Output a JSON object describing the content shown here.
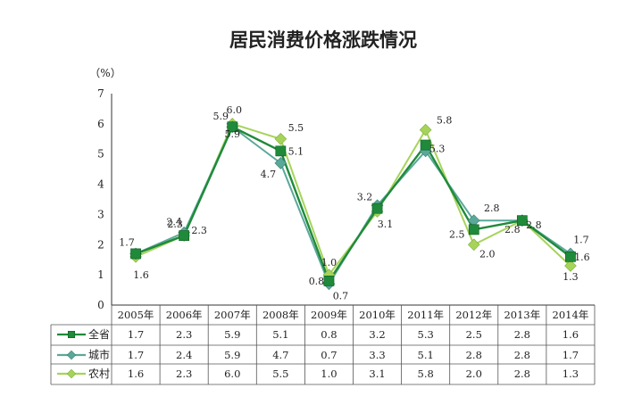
{
  "chart_data": {
    "type": "line",
    "title": "居民消费价格涨跌情况",
    "unit_label": "（%）",
    "categories": [
      "2005年",
      "2006年",
      "2007年",
      "2008年",
      "2009年",
      "2010年",
      "2011年",
      "2012年",
      "2013年",
      "2014年"
    ],
    "ylim": [
      0,
      7
    ],
    "yticks": [
      "0",
      "1",
      "2",
      "3",
      "4",
      "5",
      "6",
      "7"
    ],
    "grid": false,
    "legend": "table-left",
    "series": [
      {
        "name": "全省",
        "marker": "square",
        "color": "#1f8a3a",
        "values": [
          1.7,
          2.3,
          5.9,
          5.1,
          0.8,
          3.2,
          5.3,
          2.5,
          2.8,
          1.6
        ],
        "labels": [
          "1.7",
          "2.3",
          "5.9",
          "5.1",
          "0.8",
          "3.2",
          "5.3",
          "2.5",
          "2.8",
          "1.6"
        ]
      },
      {
        "name": "城市",
        "marker": "diamond",
        "color": "#5aa89a",
        "values": [
          1.7,
          2.4,
          5.9,
          4.7,
          0.7,
          3.3,
          5.1,
          2.8,
          2.8,
          1.7
        ],
        "labels": [
          "1.7",
          "2.4",
          "5.9",
          "4.7",
          "0.7",
          "3.3",
          "5.1",
          "2.8",
          "2.8",
          "1.7"
        ]
      },
      {
        "name": "农村",
        "marker": "diamond",
        "color": "#a6d35a",
        "values": [
          1.6,
          2.3,
          6.0,
          5.5,
          1.0,
          3.1,
          5.8,
          2.0,
          2.8,
          1.3
        ],
        "labels": [
          "1.6",
          "2.3",
          "6.0",
          "5.5",
          "1.0",
          "3.1",
          "5.8",
          "2.0",
          "2.8",
          "1.3"
        ]
      }
    ]
  }
}
